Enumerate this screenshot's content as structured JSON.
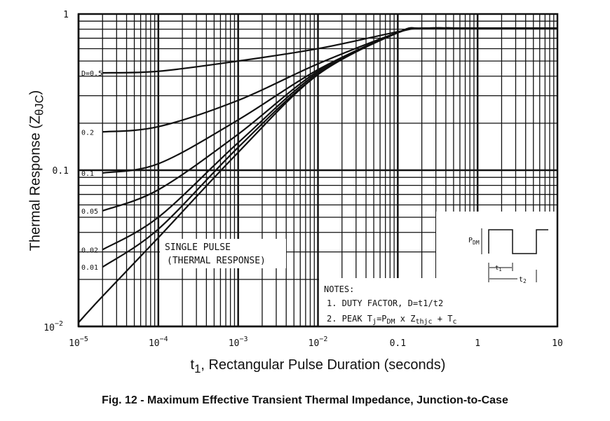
{
  "chart_data": {
    "type": "line",
    "scale": "log-log",
    "grid": true,
    "xlabel_main": "t",
    "xlabel_sub": "1",
    "xlabel_rest": ", Rectangular Pulse Duration (seconds)",
    "ylabel_main": "Thermal Response (Z",
    "ylabel_sub": "θJC",
    "ylabel_end": ")",
    "xlim": [
      1e-05,
      10
    ],
    "ylim": [
      0.01,
      1
    ],
    "x_ticks": [
      {
        "v": 1e-05,
        "b": "10",
        "e": "−5"
      },
      {
        "v": 0.0001,
        "b": "10",
        "e": "−4"
      },
      {
        "v": 0.001,
        "b": "10",
        "e": "−3"
      },
      {
        "v": 0.01,
        "b": "10",
        "e": "−2"
      },
      {
        "v": 0.1,
        "b": "0.1",
        "e": ""
      },
      {
        "v": 1,
        "b": "1",
        "e": ""
      },
      {
        "v": 10,
        "b": "10",
        "e": ""
      }
    ],
    "y_ticks": [
      {
        "v": 1,
        "b": "1",
        "e": ""
      },
      {
        "v": 0.1,
        "b": "0.1",
        "e": ""
      },
      {
        "v": 0.01,
        "b": "10",
        "e": "−2"
      }
    ],
    "series": [
      {
        "name": "D=0.5",
        "x": [
          2e-05,
          0.0001,
          0.001,
          0.01,
          0.1,
          0.2,
          1,
          10
        ],
        "y": [
          0.42,
          0.43,
          0.5,
          0.6,
          0.77,
          0.81,
          0.81,
          0.81
        ]
      },
      {
        "name": "0.2",
        "x": [
          2e-05,
          0.0001,
          0.001,
          0.01,
          0.1,
          0.2,
          1,
          10
        ],
        "y": [
          0.176,
          0.19,
          0.28,
          0.48,
          0.76,
          0.81,
          0.81,
          0.81
        ]
      },
      {
        "name": "0.1",
        "x": [
          2e-05,
          0.0001,
          0.001,
          0.01,
          0.1,
          0.2,
          1,
          10
        ],
        "y": [
          0.096,
          0.11,
          0.21,
          0.44,
          0.76,
          0.81,
          0.81,
          0.81
        ]
      },
      {
        "name": "0.05",
        "x": [
          2e-05,
          0.0001,
          0.001,
          0.01,
          0.1,
          0.2,
          1,
          10
        ],
        "y": [
          0.055,
          0.075,
          0.17,
          0.43,
          0.76,
          0.81,
          0.81,
          0.81
        ]
      },
      {
        "name": "0.02",
        "x": [
          2e-05,
          0.0001,
          0.001,
          0.01,
          0.1,
          0.2,
          1,
          10
        ],
        "y": [
          0.031,
          0.05,
          0.15,
          0.42,
          0.76,
          0.81,
          0.81,
          0.81
        ]
      },
      {
        "name": "0.01",
        "x": [
          2e-05,
          0.0001,
          0.001,
          0.01,
          0.1,
          0.2,
          1,
          10
        ],
        "y": [
          0.024,
          0.042,
          0.14,
          0.41,
          0.76,
          0.81,
          0.81,
          0.81
        ]
      },
      {
        "name": "SINGLE PULSE",
        "x": [
          1e-05,
          2e-05,
          0.0001,
          0.001,
          0.01,
          0.1,
          0.2,
          1,
          10
        ],
        "y": [
          0.0106,
          0.0156,
          0.037,
          0.13,
          0.41,
          0.76,
          0.81,
          0.81,
          0.81
        ]
      }
    ],
    "annotations": {
      "single1": "SINGLE PULSE",
      "single2": "(THERMAL RESPONSE)",
      "notes": "NOTES:",
      "note1": "1. DUTY FACTOR, D=t1/t2",
      "note2a": "2. PEAK T",
      "note2b": "j",
      "note2c": "=P",
      "note2d": "DM",
      "note2e": " x Z",
      "note2f": "thjc",
      "note2g": " + T",
      "note2h": "c",
      "pdm": "P",
      "pdm_sub": "DM",
      "t1": "t",
      "t1_sub": "1",
      "t2": "t",
      "t2_sub": "2"
    }
  },
  "caption": "Fig. 12 - Maximum Effective Transient Thermal Impedance, Junction-to-Case"
}
